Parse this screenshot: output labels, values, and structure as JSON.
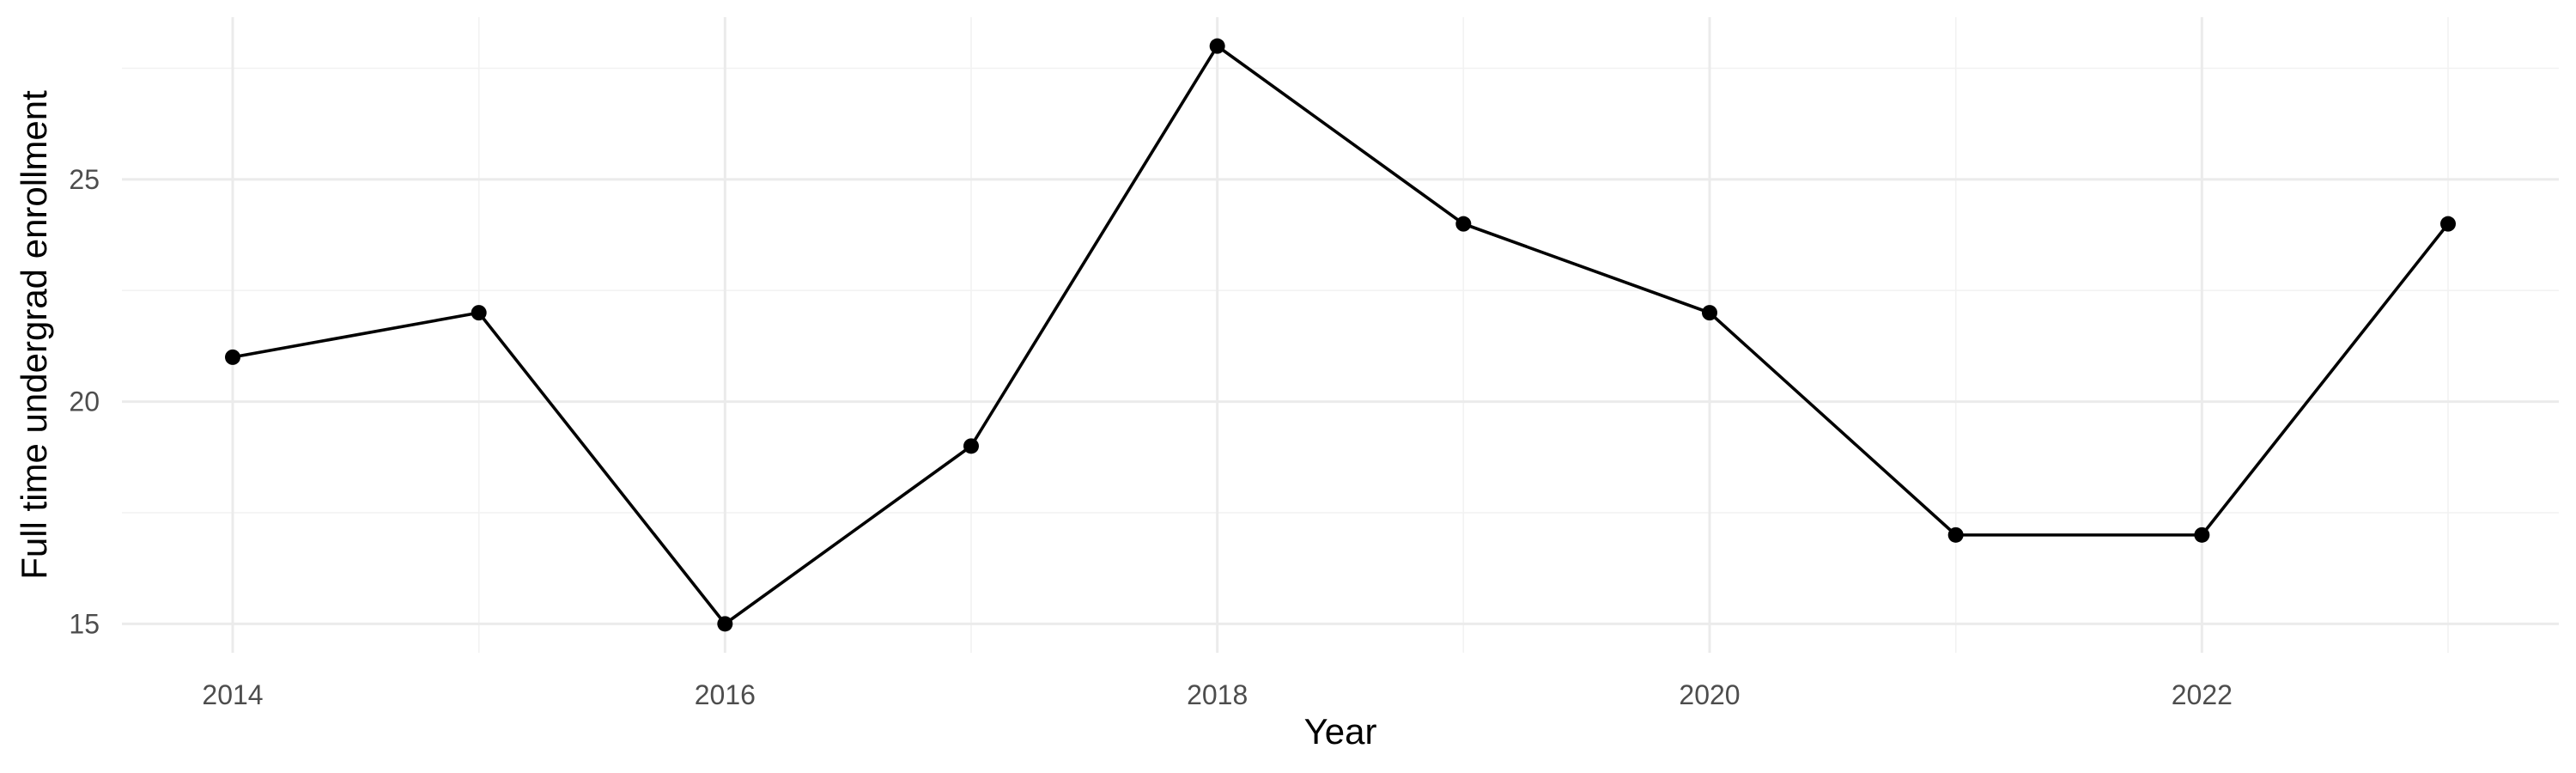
{
  "chart_data": {
    "type": "line",
    "xlabel": "Year",
    "ylabel": "Full time undergrad enrollment",
    "x": [
      2014,
      2015,
      2016,
      2017,
      2018,
      2019,
      2020,
      2021,
      2022,
      2023
    ],
    "series": [
      {
        "values": [
          21,
          22,
          15,
          19,
          28,
          24,
          22,
          17,
          17,
          24
        ],
        "color": "#000000",
        "markers": true
      }
    ],
    "x_ticks": [
      2014,
      2016,
      2018,
      2020,
      2022
    ],
    "x_tick_labels": [
      "2014",
      "2016",
      "2018",
      "2020",
      "2022"
    ],
    "y_ticks": [
      15,
      20,
      25
    ],
    "y_tick_labels": [
      "15",
      "20",
      "25"
    ],
    "xlim": [
      2013.55,
      2023.45
    ],
    "ylim": [
      14.35,
      28.65
    ],
    "grid": true,
    "legend": "none",
    "colors": {
      "background": "#ffffff",
      "grid_major": "#ebebeb",
      "grid_minor": "#f2f2f2",
      "line": "#000000",
      "tick_text": "#4d4d4d",
      "axis_title": "#000000"
    }
  }
}
